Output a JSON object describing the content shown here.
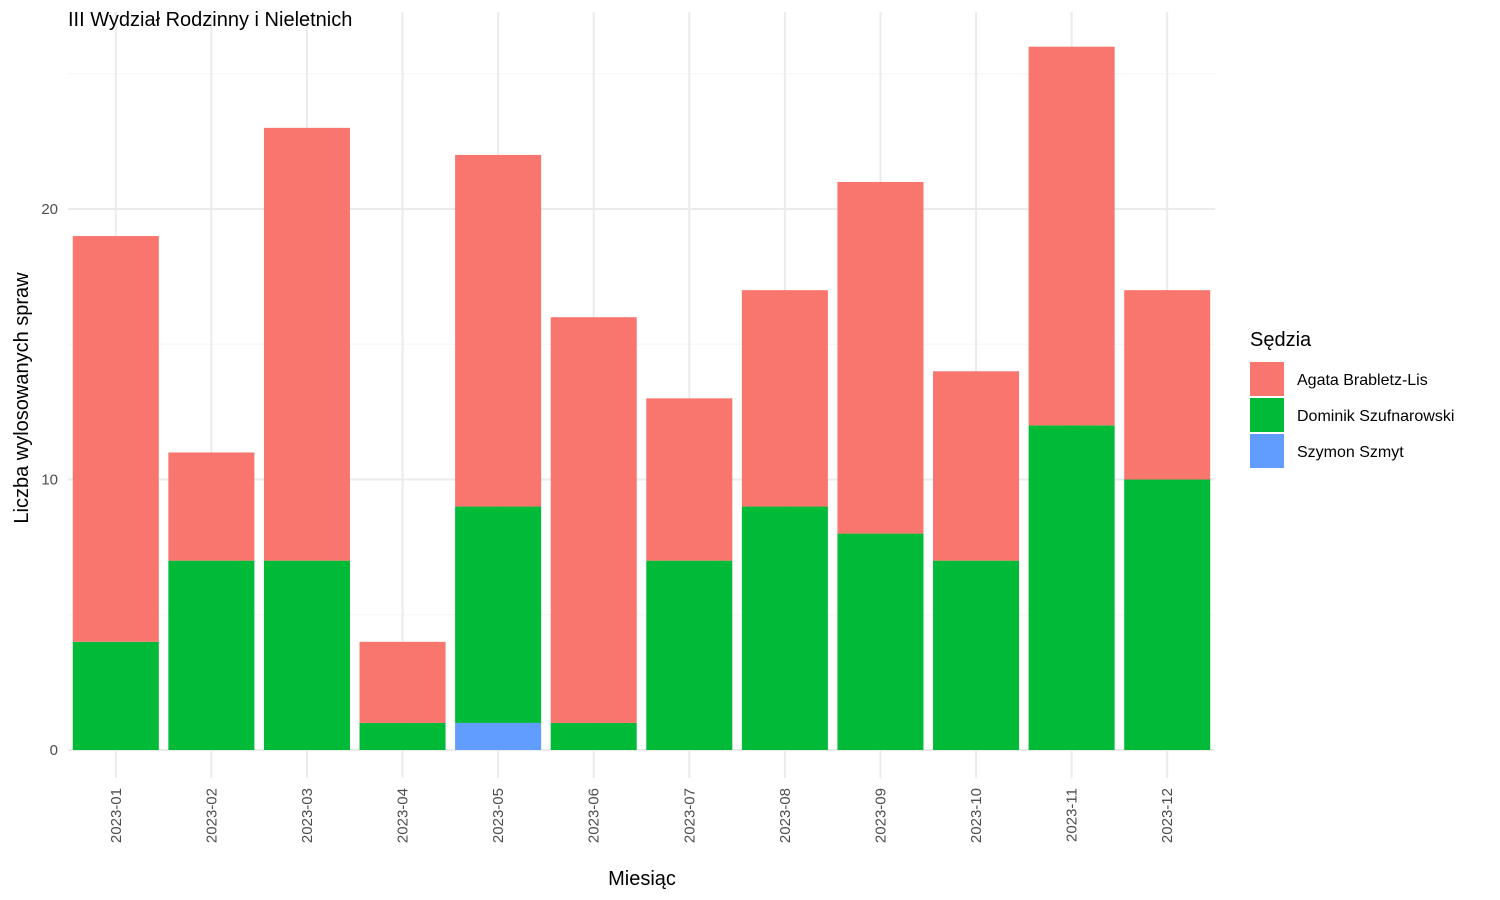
{
  "chart_data": {
    "type": "bar",
    "stacked": true,
    "title": "III Wydział Rodzinny i Nieletnich",
    "xlabel": "Miesiąc",
    "ylabel": "Liczba wylosowanych spraw",
    "ylim": [
      0,
      26
    ],
    "yticks": [
      0,
      10,
      20
    ],
    "grid": true,
    "legend": {
      "title": "Sędzia",
      "position": "right"
    },
    "categories": [
      "2023-01",
      "2023-02",
      "2023-03",
      "2023-04",
      "2023-05",
      "2023-06",
      "2023-07",
      "2023-08",
      "2023-09",
      "2023-10",
      "2023-11",
      "2023-12"
    ],
    "series": [
      {
        "name": "Agata Brabletz-Lis",
        "color": "#F8766D",
        "values": [
          15,
          4,
          16,
          3,
          13,
          15,
          6,
          8,
          13,
          7,
          14,
          7
        ]
      },
      {
        "name": "Dominik Szufnarowski",
        "color": "#00BA38",
        "values": [
          4,
          7,
          7,
          1,
          8,
          1,
          7,
          9,
          8,
          7,
          12,
          10
        ]
      },
      {
        "name": "Szymon Szmyt",
        "color": "#619CFF",
        "values": [
          0,
          0,
          0,
          0,
          1,
          0,
          0,
          0,
          0,
          0,
          0,
          0
        ]
      }
    ]
  }
}
